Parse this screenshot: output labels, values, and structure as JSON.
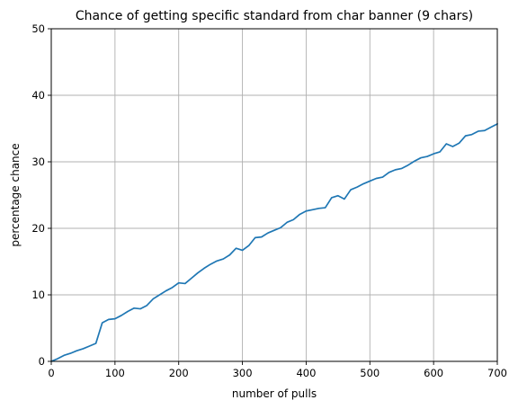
{
  "chart_data": {
    "type": "line",
    "title": "Chance of getting specific standard from char banner (9 chars)",
    "xlabel": "number of pulls",
    "ylabel": "percentage chance",
    "xlim": [
      0,
      700
    ],
    "ylim": [
      0,
      50
    ],
    "xticks": [
      0,
      100,
      200,
      300,
      400,
      500,
      600,
      700
    ],
    "yticks": [
      0,
      10,
      20,
      30,
      40,
      50
    ],
    "grid": true,
    "series": [
      {
        "color": "#1f77b4",
        "x": [
          0,
          10,
          20,
          30,
          40,
          50,
          60,
          70,
          80,
          90,
          100,
          110,
          120,
          130,
          140,
          150,
          160,
          170,
          180,
          190,
          200,
          210,
          220,
          230,
          240,
          250,
          260,
          270,
          280,
          290,
          300,
          310,
          320,
          330,
          340,
          350,
          360,
          370,
          380,
          390,
          400,
          410,
          420,
          430,
          440,
          450,
          460,
          470,
          480,
          490,
          500,
          510,
          520,
          530,
          540,
          550,
          560,
          570,
          580,
          590,
          600,
          610,
          620,
          630,
          640,
          650,
          660,
          670,
          680,
          690,
          700
        ],
        "y": [
          0,
          0.4,
          0.9,
          1.2,
          1.6,
          1.9,
          2.3,
          2.7,
          5.8,
          6.3,
          6.4,
          6.9,
          7.5,
          8.0,
          7.9,
          8.4,
          9.4,
          10.0,
          10.6,
          11.1,
          11.8,
          11.7,
          12.5,
          13.3,
          14.0,
          14.6,
          15.1,
          15.4,
          16.0,
          17.0,
          16.7,
          17.4,
          18.6,
          18.7,
          19.3,
          19.7,
          20.1,
          20.9,
          21.3,
          22.1,
          22.6,
          22.8,
          23.0,
          23.1,
          24.6,
          24.9,
          24.4,
          25.8,
          26.2,
          26.7,
          27.1,
          27.5,
          27.7,
          28.4,
          28.8,
          29.0,
          29.5,
          30.1,
          30.6,
          30.8,
          31.2,
          31.5,
          32.7,
          32.3,
          32.8,
          33.9,
          34.1,
          34.6,
          34.7,
          35.2,
          35.7
        ]
      }
    ]
  }
}
